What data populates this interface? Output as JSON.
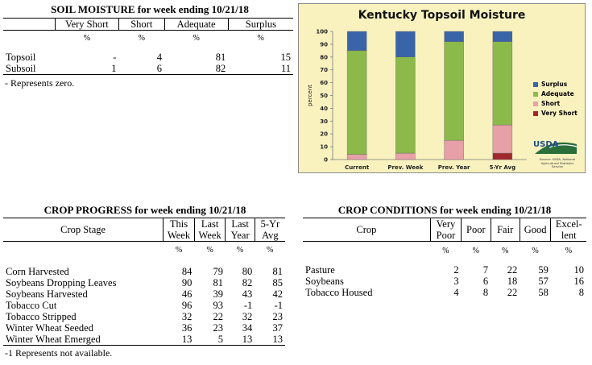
{
  "soil_moisture": {
    "title": "SOIL MOISTURE for week ending 10/21/18",
    "headers": [
      "Very Short",
      "Short",
      "Adequate",
      "Surplus"
    ],
    "unit": "%",
    "rows": [
      {
        "label": "Topsoil",
        "values": [
          "-",
          "4",
          "81",
          "15"
        ]
      },
      {
        "label": "Subsoil",
        "values": [
          "1",
          "6",
          "82",
          "11"
        ]
      }
    ],
    "note": "- Represents zero."
  },
  "chart": {
    "title": "Kentucky Topsoil Moisture",
    "usda": "USDA",
    "source": "Source: USDA, National Agricultural Statistics Service"
  },
  "chart_data": {
    "type": "bar",
    "stacked": true,
    "title": "Kentucky Topsoil Moisture",
    "ylabel": "percent",
    "ylim": [
      0,
      100
    ],
    "yticks": [
      0,
      10,
      20,
      30,
      40,
      50,
      60,
      70,
      80,
      90,
      100
    ],
    "categories": [
      "Current",
      "Prev. Week",
      "Prev. Year",
      "5-Yr Avg"
    ],
    "series": [
      {
        "name": "Very Short",
        "color": "#a0282c",
        "values": [
          0,
          0,
          0,
          5
        ]
      },
      {
        "name": "Short",
        "color": "#e8a0a8",
        "values": [
          4,
          5,
          15,
          22
        ]
      },
      {
        "name": "Adequate",
        "color": "#8cba4a",
        "values": [
          81,
          75,
          77,
          65
        ]
      },
      {
        "name": "Surplus",
        "color": "#3a64a8",
        "values": [
          15,
          20,
          8,
          8
        ]
      }
    ],
    "legend_order": [
      "Surplus",
      "Adequate",
      "Short",
      "Very Short"
    ],
    "legend_position": "right",
    "grid": false
  },
  "crop_progress": {
    "title": "CROP PROGRESS for week ending 10/21/18",
    "stage_header": "Crop Stage",
    "headers": [
      [
        "This",
        "Week"
      ],
      [
        "Last",
        "Week"
      ],
      [
        "Last",
        "Year"
      ],
      [
        "5-Yr",
        "Avg"
      ]
    ],
    "unit": "%",
    "rows": [
      {
        "label": "Corn Harvested",
        "values": [
          "84",
          "79",
          "80",
          "81"
        ]
      },
      {
        "label": "Soybeans Dropping Leaves",
        "values": [
          "90",
          "81",
          "82",
          "85"
        ]
      },
      {
        "label": "Soybeans Harvested",
        "values": [
          "46",
          "39",
          "43",
          "42"
        ]
      },
      {
        "label": "Tobacco Cut",
        "values": [
          "96",
          "93",
          "-1",
          "-1"
        ]
      },
      {
        "label": "Tobacco Stripped",
        "values": [
          "32",
          "22",
          "32",
          "23"
        ]
      },
      {
        "label": "Winter Wheat Seeded",
        "values": [
          "36",
          "23",
          "34",
          "37"
        ]
      },
      {
        "label": "Winter Wheat Emerged",
        "values": [
          "13",
          "5",
          "13",
          "13"
        ]
      }
    ],
    "note": "-1 Represents not available."
  },
  "crop_conditions": {
    "title": "CROP CONDITIONS for week ending 10/21/18",
    "crop_header": "Crop",
    "headers": [
      [
        "Very",
        "Poor"
      ],
      [
        "Poor"
      ],
      [
        "Fair"
      ],
      [
        "Good"
      ],
      [
        "Excel-",
        "lent"
      ]
    ],
    "unit": "%",
    "rows": [
      {
        "label": "Pasture",
        "values": [
          "2",
          "7",
          "22",
          "59",
          "10"
        ]
      },
      {
        "label": "Soybeans",
        "values": [
          "3",
          "6",
          "18",
          "57",
          "16"
        ]
      },
      {
        "label": "Tobacco Housed",
        "values": [
          "4",
          "8",
          "22",
          "58",
          "8"
        ]
      }
    ]
  }
}
